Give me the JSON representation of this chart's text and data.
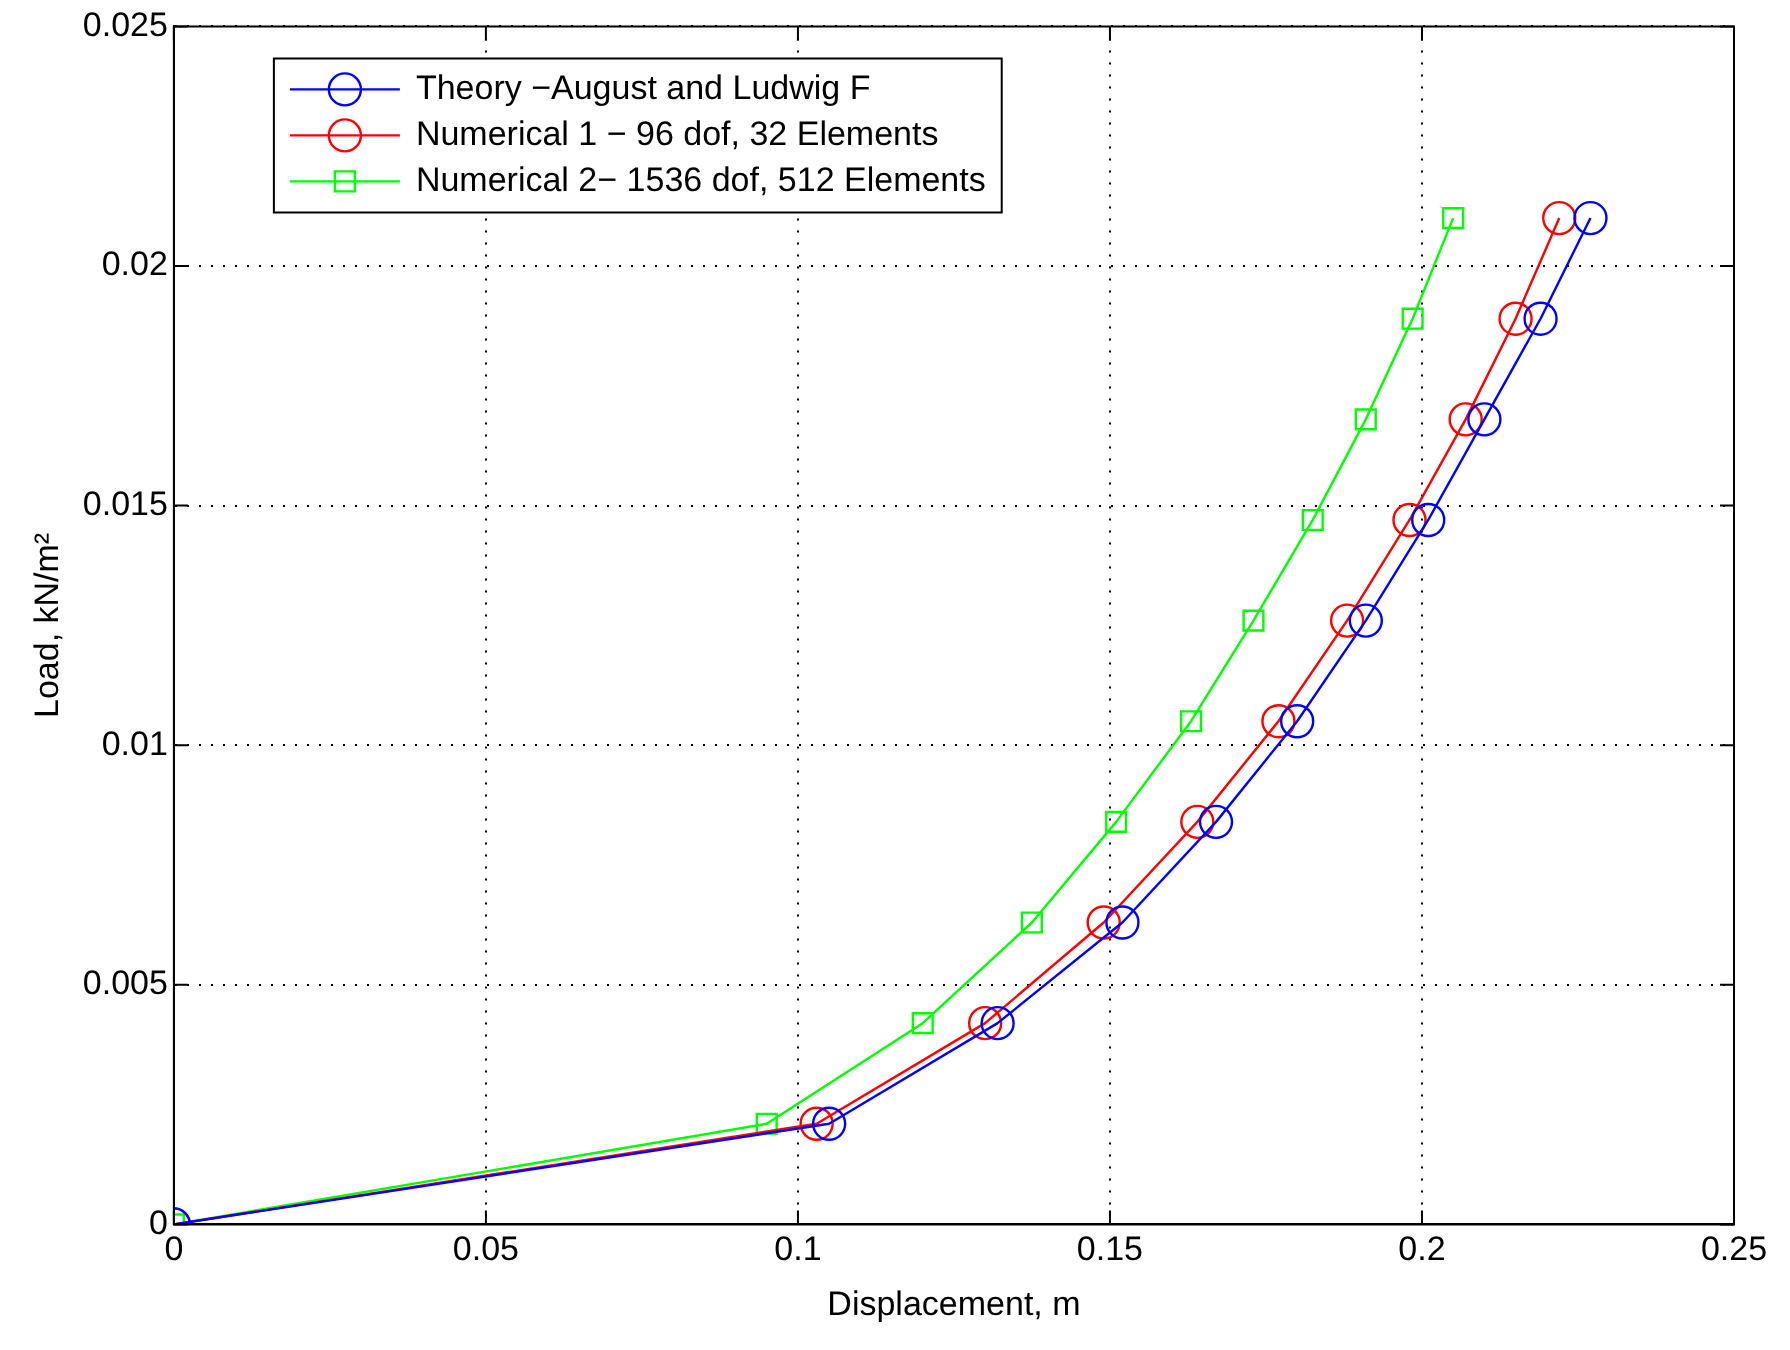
{
  "chart_data": {
    "type": "line",
    "xlabel": "Displacement, m",
    "ylabel": "Load, kN/m²",
    "xlim": [
      0,
      0.25
    ],
    "xticks": [
      0,
      0.05,
      0.1,
      0.15,
      0.2,
      0.25
    ],
    "ylim": [
      0,
      0.025
    ],
    "yticks": [
      0,
      0.005,
      0.01,
      0.015,
      0.02,
      0.025
    ],
    "grid": true,
    "legend": "top left",
    "line_style": "solid",
    "series": [
      {
        "name": "Theory −August and Ludwig F",
        "color": "#0000ff",
        "marker": "circle",
        "x": [
          0,
          0.105,
          0.132,
          0.152,
          0.167,
          0.18,
          0.191,
          0.201,
          0.21,
          0.219,
          0.227
        ],
        "values": [
          0,
          0.0021,
          0.0042,
          0.0063,
          0.0084,
          0.0105,
          0.0126,
          0.0147,
          0.0168,
          0.0189,
          0.021
        ]
      },
      {
        "name": "Numerical 1 − 96 dof, 32 Elements",
        "color": "#ff0000",
        "marker": "circle",
        "x": [
          0,
          0.103,
          0.13,
          0.149,
          0.164,
          0.177,
          0.188,
          0.198,
          0.207,
          0.215,
          0.222
        ],
        "values": [
          0,
          0.0021,
          0.0042,
          0.0063,
          0.0084,
          0.0105,
          0.0126,
          0.0147,
          0.0168,
          0.0189,
          0.021
        ]
      },
      {
        "name": "Numerical 2− 1536 dof, 512 Elements",
        "color": "#00ff00",
        "marker": "square",
        "x": [
          0,
          0.095,
          0.12,
          0.1375,
          0.151,
          0.163,
          0.173,
          0.1825,
          0.191,
          0.1985,
          0.205
        ],
        "values": [
          0,
          0.0021,
          0.0042,
          0.0063,
          0.0084,
          0.0105,
          0.0126,
          0.0147,
          0.0168,
          0.0189,
          0.021
        ]
      }
    ]
  }
}
